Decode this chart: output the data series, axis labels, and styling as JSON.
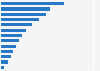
{
  "values": [
    137,
    107,
    97,
    83,
    68,
    55,
    45,
    38,
    32,
    27,
    22,
    15,
    7
  ],
  "bar_color": "#2878c8",
  "background_color": "#f5f5f5",
  "plot_background": "#f5f5f5",
  "grid_color": "#ffffff",
  "figsize": [
    1.0,
    0.71
  ],
  "dpi": 100,
  "bar_height": 0.6,
  "xlim_factor": 1.55
}
